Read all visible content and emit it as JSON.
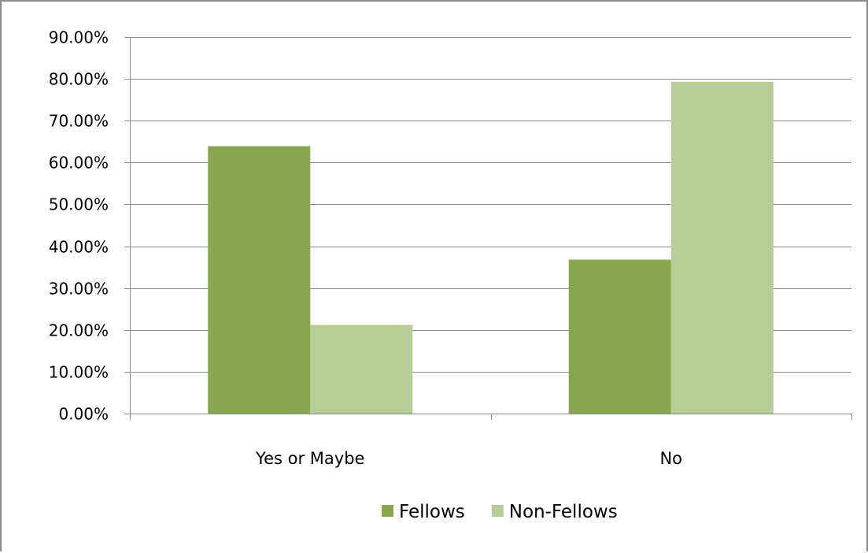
{
  "chart_data": {
    "type": "bar",
    "categories": [
      "Yes or Maybe",
      "No"
    ],
    "series": [
      {
        "name": "Fellows",
        "color": "#88a64e",
        "values": [
          63.9,
          36.8
        ]
      },
      {
        "name": "Non-Fellows",
        "color": "#b8cd96",
        "values": [
          21.2,
          79.3
        ]
      }
    ],
    "y_ticks": [
      "0.00%",
      "10.00%",
      "20.00%",
      "30.00%",
      "40.00%",
      "50.00%",
      "60.00%",
      "70.00%",
      "80.00%",
      "90.00%"
    ],
    "ylim": [
      0,
      90
    ],
    "grid": true,
    "legend_position": "bottom",
    "title": "",
    "xlabel": "",
    "ylabel": ""
  }
}
